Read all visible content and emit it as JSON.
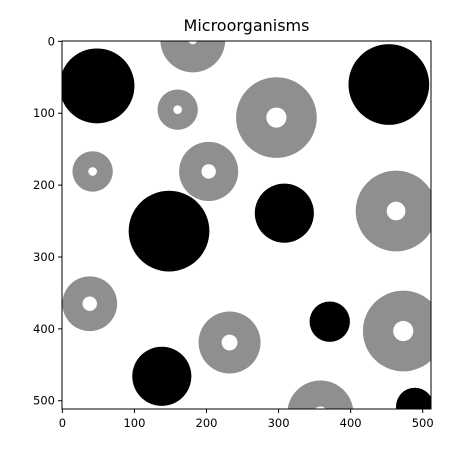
{
  "title": "Microorganisms",
  "x_ticks": [
    "0",
    "100",
    "200",
    "300",
    "400",
    "500"
  ],
  "y_ticks": [
    "0",
    "100",
    "200",
    "300",
    "400",
    "500"
  ],
  "image_size": [
    512,
    512
  ],
  "colors": {
    "background": "#ffffff",
    "solid_cell": "#000000",
    "ring_cell": "#8f8f8f",
    "axis": "#000000"
  },
  "organisms": [
    {
      "type": "solid",
      "cx": 48,
      "cy": 62,
      "r": 52
    },
    {
      "type": "solid",
      "cx": 453,
      "cy": 60,
      "r": 56
    },
    {
      "type": "solid",
      "cx": 148,
      "cy": 264,
      "r": 56
    },
    {
      "type": "solid",
      "cx": 308,
      "cy": 239,
      "r": 41
    },
    {
      "type": "solid",
      "cx": 371,
      "cy": 390,
      "r": 28
    },
    {
      "type": "solid",
      "cx": 138,
      "cy": 466,
      "r": 41
    },
    {
      "type": "solid",
      "cx": 489,
      "cy": 508,
      "r": 26
    },
    {
      "type": "ring",
      "cx": 181,
      "cy": -2,
      "r": 45,
      "hole": 6
    },
    {
      "type": "ring",
      "cx": 160,
      "cy": 95,
      "r": 28,
      "hole": 6
    },
    {
      "type": "ring",
      "cx": 297,
      "cy": 106,
      "r": 56,
      "hole": 14
    },
    {
      "type": "ring",
      "cx": 42,
      "cy": 181,
      "r": 28,
      "hole": 6
    },
    {
      "type": "ring",
      "cx": 203,
      "cy": 181,
      "r": 41,
      "hole": 10
    },
    {
      "type": "ring",
      "cx": 463,
      "cy": 236,
      "r": 56,
      "hole": 13
    },
    {
      "type": "ring",
      "cx": 38,
      "cy": 365,
      "r": 38,
      "hole": 10
    },
    {
      "type": "ring",
      "cx": 473,
      "cy": 403,
      "r": 56,
      "hole": 14
    },
    {
      "type": "ring",
      "cx": 232,
      "cy": 419,
      "r": 43,
      "hole": 11
    },
    {
      "type": "ring",
      "cx": 358,
      "cy": 518,
      "r": 46,
      "hole": 10
    }
  ]
}
